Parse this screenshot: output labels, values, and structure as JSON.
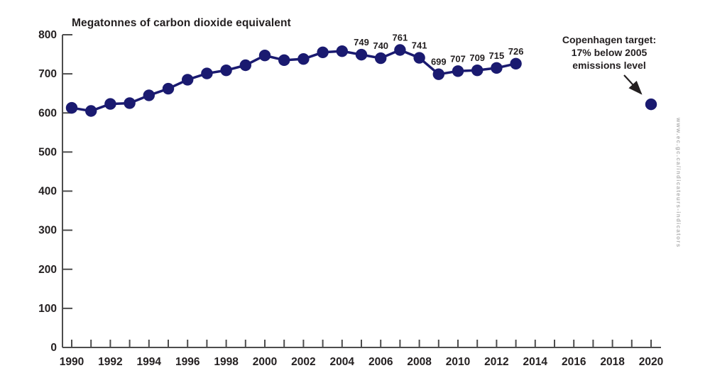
{
  "title": "Megatonnes of carbon dioxide equivalent",
  "annotation": {
    "line1": "Copenhagen target:",
    "line2": "17% below 2005",
    "line3": "emissions level"
  },
  "watermark": "www.ec.gc.ca/indicateurs-indicators",
  "colors": {
    "series": "#1a1a70",
    "axis": "#4d4d4d",
    "text": "#231f20",
    "watermark": "#b3b3b3"
  },
  "chart_data": {
    "type": "line",
    "title": "Megatonnes of carbon dioxide equivalent",
    "x": [
      1990,
      1991,
      1992,
      1993,
      1994,
      1995,
      1996,
      1997,
      1998,
      1999,
      2000,
      2001,
      2002,
      2003,
      2004,
      2005,
      2006,
      2007,
      2008,
      2009,
      2010,
      2011,
      2012,
      2013
    ],
    "values": [
      613,
      605,
      623,
      625,
      645,
      662,
      685,
      701,
      709,
      722,
      747,
      735,
      738,
      755,
      758,
      749,
      740,
      761,
      741,
      699,
      707,
      709,
      715,
      726
    ],
    "label_years": [
      2005,
      2006,
      2007,
      2008,
      2009,
      2010,
      2011,
      2012,
      2013
    ],
    "point_labels": [
      "749",
      "740",
      "761",
      "741",
      "699",
      "707",
      "709",
      "715",
      "726"
    ],
    "target_point": {
      "year": 2020,
      "value": 622,
      "label": "Copenhagen target: 17% below 2005 emissions level"
    },
    "xlim": [
      1990,
      2020
    ],
    "ylim": [
      0,
      800
    ],
    "y_ticks": [
      0,
      100,
      200,
      300,
      400,
      500,
      600,
      700,
      800
    ],
    "x_labels": [
      1990,
      1992,
      1994,
      1996,
      1998,
      2000,
      2002,
      2004,
      2006,
      2008,
      2010,
      2012,
      2014,
      2016,
      2018,
      2020
    ],
    "x_minor_tick_every": 1,
    "grid": false,
    "legend": null
  }
}
